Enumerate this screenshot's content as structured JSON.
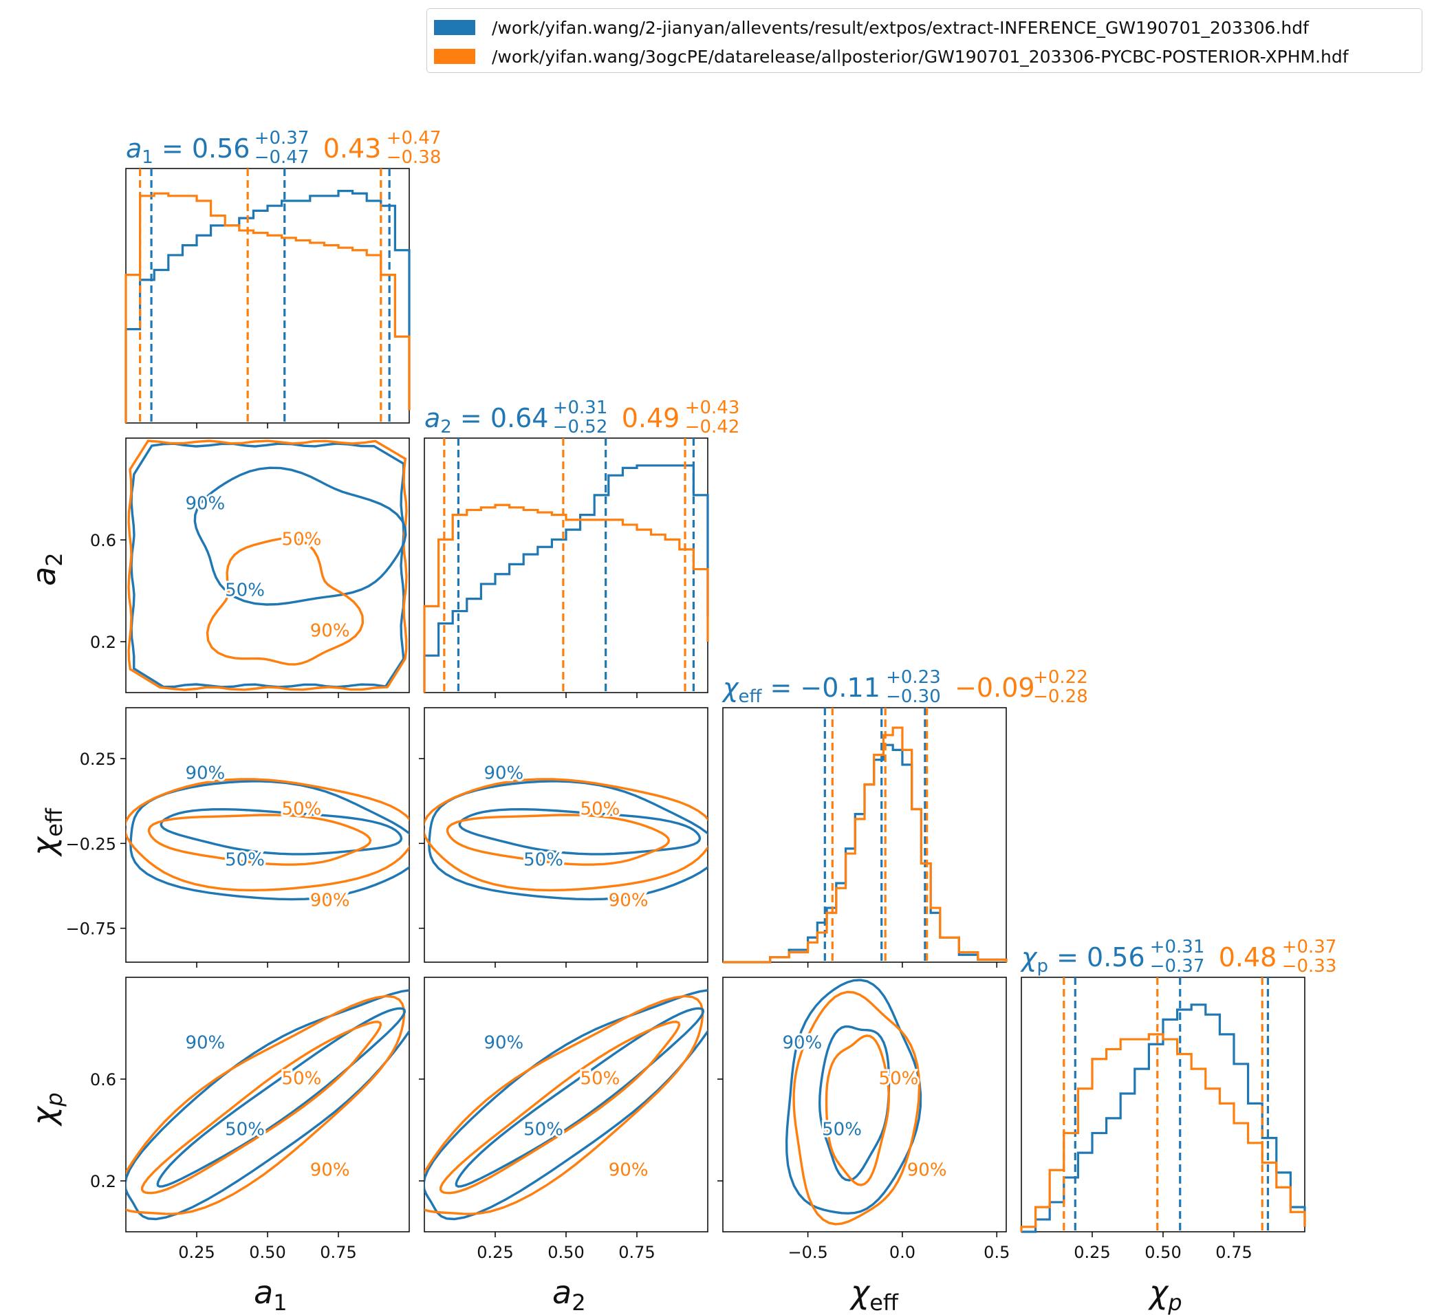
{
  "legend": {
    "entries": [
      {
        "label": "/work/yifan.wang/2-jianyan/allevents/result/extpos/extract-INFERENCE_GW190701_203306.hdf",
        "color": "#1f77b4"
      },
      {
        "label": "/work/yifan.wang/3ogcPE/datarelease/allposterior/GW190701_203306-PYCBC-POSTERIOR-XPHM.hdf",
        "color": "#ff7f0e"
      }
    ],
    "placement": "top-right"
  },
  "colors": {
    "blue": "#1f77b4",
    "orange": "#ff7f0e"
  },
  "chart_data": {
    "type": "corner",
    "parameters": [
      {
        "key": "a1",
        "label": "a_1",
        "range": [
          0,
          1
        ],
        "ticks": [
          "0.25",
          "0.50",
          "0.75"
        ],
        "tick_values": [
          0.25,
          0.5,
          0.75
        ],
        "blue": {
          "median": "0.56",
          "plus": "+0.37",
          "minus": "−0.47"
        },
        "orange": {
          "median": "0.43",
          "plus": "+0.47",
          "minus": "−0.38"
        }
      },
      {
        "key": "a2",
        "label": "a_2",
        "range": [
          0,
          1
        ],
        "ticks": [
          "0.25",
          "0.50",
          "0.75"
        ],
        "tick_values": [
          0.25,
          0.5,
          0.75
        ],
        "y_ticks": [
          "0.2",
          "0.6"
        ],
        "y_tick_values": [
          0.2,
          0.6
        ],
        "blue": {
          "median": "0.64",
          "plus": "+0.31",
          "minus": "−0.52"
        },
        "orange": {
          "median": "0.49",
          "plus": "+0.43",
          "minus": "−0.42"
        }
      },
      {
        "key": "chi_eff",
        "label": "χ_eff",
        "range": [
          -0.95,
          0.55
        ],
        "ticks": [
          "−0.5",
          "0.0",
          "0.5"
        ],
        "tick_values": [
          -0.5,
          0.0,
          0.5
        ],
        "y_ticks": [
          "0.25",
          "−0.25",
          "−0.75"
        ],
        "y_tick_values": [
          0.25,
          -0.25,
          -0.75
        ],
        "blue": {
          "median": "−0.11",
          "plus": "+0.23",
          "minus": "−0.30"
        },
        "orange": {
          "median": "−0.09",
          "plus": "+0.22",
          "minus": "−0.28"
        }
      },
      {
        "key": "chi_p",
        "label": "χ_p",
        "range": [
          0,
          1
        ],
        "ticks": [
          "0.25",
          "0.50",
          "0.75"
        ],
        "tick_values": [
          0.25,
          0.5,
          0.75
        ],
        "y_ticks": [
          "0.6",
          "0.2"
        ],
        "y_tick_values": [
          0.6,
          0.2
        ],
        "blue": {
          "median": "0.56",
          "plus": "+0.31",
          "minus": "−0.37"
        },
        "orange": {
          "median": "0.48",
          "plus": "+0.37",
          "minus": "−0.33"
        }
      }
    ],
    "axis_labels": {
      "a1": {
        "base": "a",
        "sub": "1"
      },
      "a2": {
        "base": "a",
        "sub": "2"
      },
      "chi_eff": {
        "base": "χ",
        "sub": "eff"
      },
      "chi_p": {
        "base": "χ",
        "sub": "p"
      }
    },
    "marginal_histograms": {
      "a1": {
        "blue": [
          [
            0,
            0.38
          ],
          [
            0.05,
            0.58
          ],
          [
            0.1,
            0.62
          ],
          [
            0.15,
            0.68
          ],
          [
            0.2,
            0.72
          ],
          [
            0.25,
            0.76
          ],
          [
            0.3,
            0.8
          ],
          [
            0.35,
            0.8
          ],
          [
            0.4,
            0.83
          ],
          [
            0.45,
            0.86
          ],
          [
            0.5,
            0.88
          ],
          [
            0.55,
            0.9
          ],
          [
            0.6,
            0.9
          ],
          [
            0.65,
            0.92
          ],
          [
            0.7,
            0.92
          ],
          [
            0.75,
            0.94
          ],
          [
            0.8,
            0.93
          ],
          [
            0.85,
            0.9
          ],
          [
            0.9,
            0.88
          ],
          [
            0.95,
            0.7
          ],
          [
            1.0,
            0.05
          ]
        ],
        "orange": [
          [
            0,
            0.6
          ],
          [
            0.05,
            0.92
          ],
          [
            0.1,
            0.93
          ],
          [
            0.15,
            0.92
          ],
          [
            0.2,
            0.92
          ],
          [
            0.25,
            0.9
          ],
          [
            0.3,
            0.84
          ],
          [
            0.35,
            0.8
          ],
          [
            0.4,
            0.78
          ],
          [
            0.45,
            0.77
          ],
          [
            0.5,
            0.76
          ],
          [
            0.55,
            0.75
          ],
          [
            0.6,
            0.74
          ],
          [
            0.65,
            0.73
          ],
          [
            0.7,
            0.72
          ],
          [
            0.75,
            0.71
          ],
          [
            0.8,
            0.7
          ],
          [
            0.85,
            0.68
          ],
          [
            0.9,
            0.6
          ],
          [
            0.95,
            0.35
          ],
          [
            1.0,
            0.05
          ]
        ],
        "blue_quantiles": [
          0.09,
          0.56,
          0.93
        ],
        "orange_quantiles": [
          0.05,
          0.43,
          0.9
        ]
      },
      "a2": {
        "blue": [
          [
            0,
            0.15
          ],
          [
            0.05,
            0.28
          ],
          [
            0.1,
            0.33
          ],
          [
            0.15,
            0.38
          ],
          [
            0.2,
            0.44
          ],
          [
            0.25,
            0.48
          ],
          [
            0.3,
            0.52
          ],
          [
            0.35,
            0.56
          ],
          [
            0.4,
            0.59
          ],
          [
            0.45,
            0.62
          ],
          [
            0.5,
            0.66
          ],
          [
            0.55,
            0.72
          ],
          [
            0.6,
            0.8
          ],
          [
            0.65,
            0.88
          ],
          [
            0.7,
            0.91
          ],
          [
            0.75,
            0.92
          ],
          [
            0.8,
            0.92
          ],
          [
            0.85,
            0.92
          ],
          [
            0.9,
            0.92
          ],
          [
            0.95,
            0.8
          ],
          [
            1.0,
            0.3
          ]
        ],
        "orange": [
          [
            0,
            0.35
          ],
          [
            0.05,
            0.62
          ],
          [
            0.1,
            0.72
          ],
          [
            0.15,
            0.74
          ],
          [
            0.2,
            0.75
          ],
          [
            0.25,
            0.76
          ],
          [
            0.3,
            0.75
          ],
          [
            0.35,
            0.74
          ],
          [
            0.4,
            0.73
          ],
          [
            0.45,
            0.72
          ],
          [
            0.5,
            0.7
          ],
          [
            0.55,
            0.7
          ],
          [
            0.6,
            0.7
          ],
          [
            0.65,
            0.7
          ],
          [
            0.7,
            0.68
          ],
          [
            0.75,
            0.66
          ],
          [
            0.8,
            0.64
          ],
          [
            0.85,
            0.62
          ],
          [
            0.9,
            0.58
          ],
          [
            0.95,
            0.5
          ],
          [
            1.0,
            0.2
          ]
        ],
        "blue_quantiles": [
          0.12,
          0.64,
          0.95
        ],
        "orange_quantiles": [
          0.07,
          0.49,
          0.92
        ]
      },
      "chi_eff": {
        "blue": [
          [
            -0.95,
            0.0
          ],
          [
            -0.7,
            0.02
          ],
          [
            -0.6,
            0.05
          ],
          [
            -0.5,
            0.1
          ],
          [
            -0.45,
            0.16
          ],
          [
            -0.4,
            0.22
          ],
          [
            -0.35,
            0.32
          ],
          [
            -0.3,
            0.46
          ],
          [
            -0.25,
            0.6
          ],
          [
            -0.2,
            0.72
          ],
          [
            -0.15,
            0.82
          ],
          [
            -0.1,
            0.88
          ],
          [
            -0.05,
            0.86
          ],
          [
            0.0,
            0.8
          ],
          [
            0.05,
            0.62
          ],
          [
            0.1,
            0.4
          ],
          [
            0.15,
            0.2
          ],
          [
            0.2,
            0.1
          ],
          [
            0.3,
            0.03
          ],
          [
            0.4,
            0.01
          ],
          [
            0.55,
            0.0
          ]
        ],
        "orange": [
          [
            -0.95,
            0.0
          ],
          [
            -0.7,
            0.02
          ],
          [
            -0.6,
            0.04
          ],
          [
            -0.5,
            0.08
          ],
          [
            -0.45,
            0.12
          ],
          [
            -0.4,
            0.2
          ],
          [
            -0.35,
            0.3
          ],
          [
            -0.3,
            0.44
          ],
          [
            -0.25,
            0.58
          ],
          [
            -0.2,
            0.72
          ],
          [
            -0.15,
            0.84
          ],
          [
            -0.1,
            0.92
          ],
          [
            -0.05,
            0.95
          ],
          [
            0.0,
            0.86
          ],
          [
            0.05,
            0.62
          ],
          [
            0.1,
            0.4
          ],
          [
            0.15,
            0.22
          ],
          [
            0.2,
            0.1
          ],
          [
            0.3,
            0.04
          ],
          [
            0.4,
            0.01
          ],
          [
            0.55,
            0.0
          ]
        ],
        "blue_quantiles": [
          -0.41,
          -0.11,
          0.12
        ],
        "orange_quantiles": [
          -0.37,
          -0.09,
          0.13
        ]
      },
      "chi_p": {
        "blue": [
          [
            0,
            0.0
          ],
          [
            0.05,
            0.05
          ],
          [
            0.1,
            0.12
          ],
          [
            0.15,
            0.22
          ],
          [
            0.2,
            0.32
          ],
          [
            0.25,
            0.4
          ],
          [
            0.3,
            0.46
          ],
          [
            0.35,
            0.56
          ],
          [
            0.4,
            0.66
          ],
          [
            0.45,
            0.76
          ],
          [
            0.5,
            0.86
          ],
          [
            0.55,
            0.9
          ],
          [
            0.6,
            0.92
          ],
          [
            0.65,
            0.88
          ],
          [
            0.7,
            0.8
          ],
          [
            0.75,
            0.68
          ],
          [
            0.8,
            0.52
          ],
          [
            0.85,
            0.38
          ],
          [
            0.9,
            0.24
          ],
          [
            0.95,
            0.1
          ],
          [
            1.0,
            0.02
          ]
        ],
        "orange": [
          [
            0,
            0.02
          ],
          [
            0.05,
            0.1
          ],
          [
            0.1,
            0.25
          ],
          [
            0.15,
            0.4
          ],
          [
            0.2,
            0.58
          ],
          [
            0.25,
            0.7
          ],
          [
            0.3,
            0.74
          ],
          [
            0.35,
            0.78
          ],
          [
            0.4,
            0.78
          ],
          [
            0.45,
            0.8
          ],
          [
            0.5,
            0.78
          ],
          [
            0.55,
            0.72
          ],
          [
            0.6,
            0.66
          ],
          [
            0.65,
            0.58
          ],
          [
            0.7,
            0.52
          ],
          [
            0.75,
            0.44
          ],
          [
            0.8,
            0.36
          ],
          [
            0.85,
            0.28
          ],
          [
            0.9,
            0.18
          ],
          [
            0.95,
            0.08
          ],
          [
            1.0,
            0.02
          ]
        ],
        "blue_quantiles": [
          0.19,
          0.56,
          0.87
        ],
        "orange_quantiles": [
          0.15,
          0.48,
          0.85
        ]
      }
    },
    "contour_labels": [
      "50%",
      "90%"
    ]
  }
}
